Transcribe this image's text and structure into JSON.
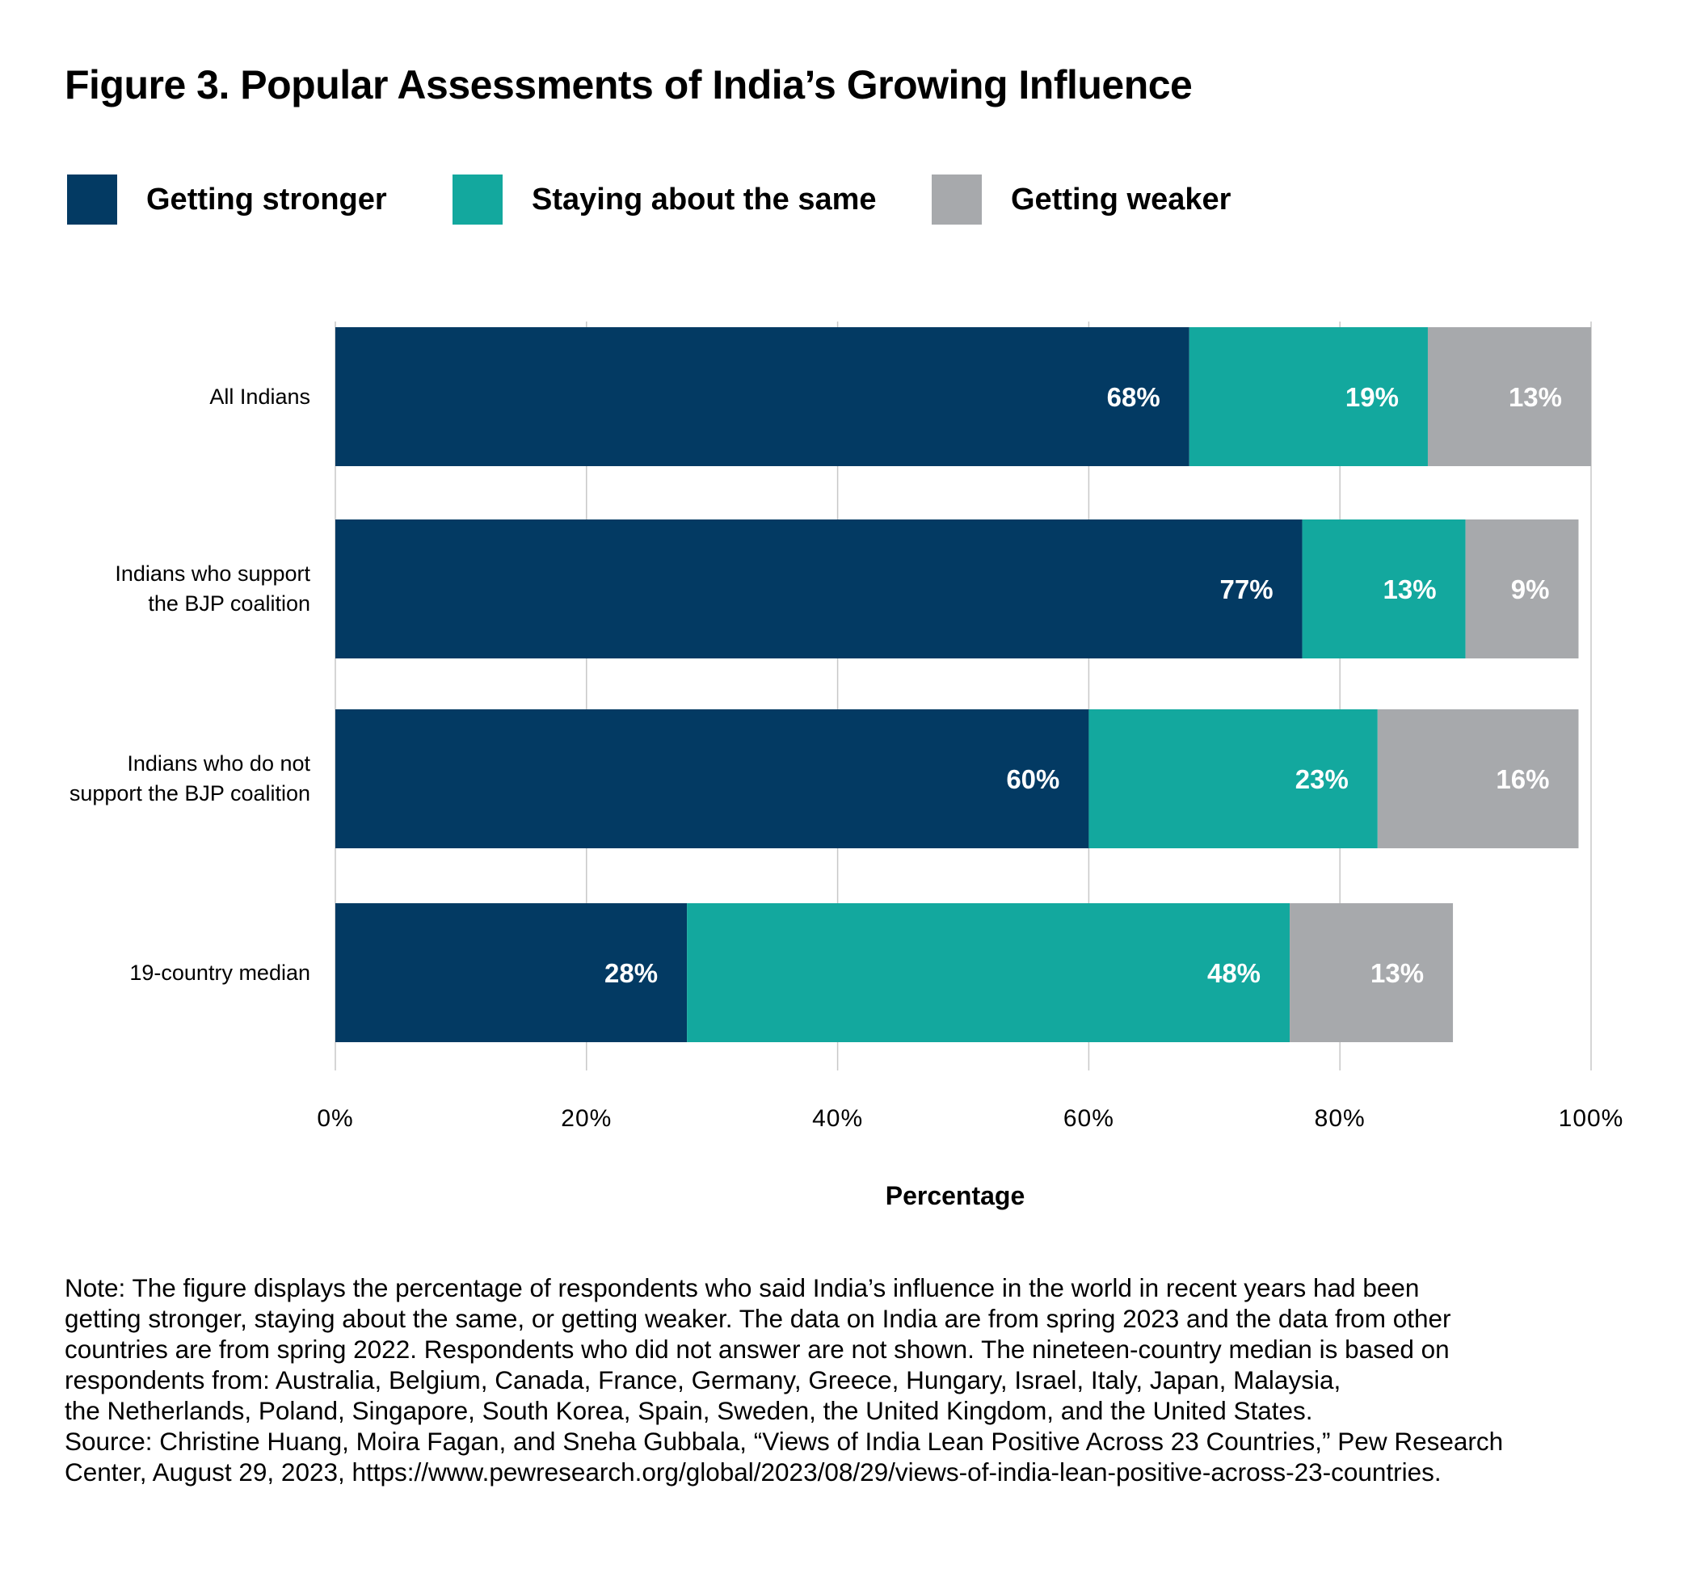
{
  "title": "Figure 3. Popular Assessments of India’s Growing Influence",
  "colors": {
    "Getting stronger": "#033a63",
    "Staying about the same": "#13a89e",
    "Getting weaker": "#a7a9ac"
  },
  "chart_data": {
    "type": "bar",
    "orientation": "horizontal",
    "stacked": true,
    "title": "Figure 3. Popular Assessments of India’s Growing Influence",
    "xlabel": "Percentage",
    "ylabel": "",
    "xlim": [
      0,
      100
    ],
    "xticks": [
      "0%",
      "20%",
      "40%",
      "60%",
      "80%",
      "100%"
    ],
    "grid": true,
    "legend": "top-left",
    "categories": [
      [
        "All Indians"
      ],
      [
        "Indians who support",
        "the BJP coalition"
      ],
      [
        "Indians who do not",
        "support the BJP coalition"
      ],
      [
        "19-country median"
      ]
    ],
    "series": [
      {
        "name": "Getting stronger",
        "values": [
          68,
          77,
          60,
          28
        ],
        "labels": [
          "68%",
          "77%",
          "60%",
          "28%"
        ]
      },
      {
        "name": "Staying about the same",
        "values": [
          19,
          13,
          23,
          48
        ],
        "labels": [
          "19%",
          "13%",
          "23%",
          "48%"
        ]
      },
      {
        "name": "Getting weaker",
        "values": [
          13,
          9,
          16,
          13
        ],
        "labels": [
          "13%",
          "9%",
          "16%",
          "13%"
        ]
      }
    ]
  },
  "notes": [
    "Note: The figure displays the percentage of respondents who said India’s influence in the world in recent years had been",
    "getting stronger, staying about the same, or getting weaker. The data on India are from spring 2023 and the data from other",
    "countries are from spring 2022. Respondents who did not answer are not shown. The nineteen-country median is based on",
    "respondents from: Australia, Belgium, Canada, France, Germany, Greece, Hungary, Israel, Italy, Japan, Malaysia,",
    "the Netherlands, Poland, Singapore, South Korea, Spain, Sweden, the United Kingdom, and the United States.",
    "Source: Christine Huang, Moira Fagan, and Sneha Gubbala, “Views of India Lean Positive Across 23 Countries,” Pew Research",
    "Center, August 29, 2023, https://www.pewresearch.org/global/2023/08/29/views-of-india-lean-positive-across-23-countries."
  ]
}
